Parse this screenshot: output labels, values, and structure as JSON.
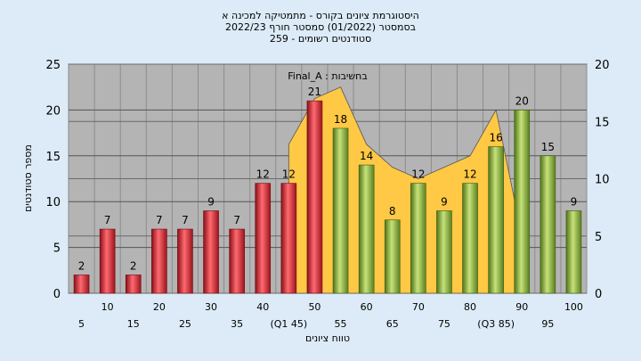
{
  "chart_data": {
    "type": "bar",
    "title_lines": [
      "היסטוגרמת ציונים בקורס - מתמטיקה למכינה א",
      "בסמסטר  (01/2022)  סמסטר חורף 2022/23",
      "סטודנטים רשומים - 259"
    ],
    "xlabel": "טווח ציונים",
    "ylabel": "מספר סטודנטים",
    "annotation": "Final_A : בחשיבות",
    "ylim": [
      0,
      25
    ],
    "y2lim": [
      0,
      20
    ],
    "yticks": [
      0,
      5,
      10,
      15,
      20,
      25
    ],
    "y2ticks": [
      0,
      5,
      10,
      15,
      20
    ],
    "categories": [
      "5",
      "10",
      "15",
      "20",
      "25",
      "30",
      "35",
      "40",
      "45",
      "50",
      "55",
      "60",
      "65",
      "70",
      "75",
      "80",
      "85",
      "90",
      "95",
      "100"
    ],
    "category_labels": [
      "5",
      "10",
      "15",
      "20",
      "25",
      "30",
      "35",
      "40",
      "(Q1 45)",
      "50",
      "55",
      "60",
      "65",
      "70",
      "75",
      "80",
      "(Q3 85)",
      "90",
      "95",
      "100"
    ],
    "values": [
      2,
      7,
      2,
      7,
      7,
      9,
      7,
      12,
      12,
      21,
      18,
      14,
      8,
      12,
      9,
      12,
      16,
      20,
      15,
      9
    ],
    "fail_color": "#e0303a",
    "pass_color": "#8fb83a",
    "pass_threshold": 55,
    "area_color": "#ffc845",
    "area_series": {
      "categories": [
        "45",
        "50",
        "55",
        "60",
        "65",
        "70",
        "75",
        "80",
        "85",
        "90"
      ],
      "values": [
        13,
        17,
        18,
        13,
        11,
        10,
        11,
        12,
        16,
        5
      ]
    },
    "plot_background": "#b4b4b4",
    "grid": true
  }
}
